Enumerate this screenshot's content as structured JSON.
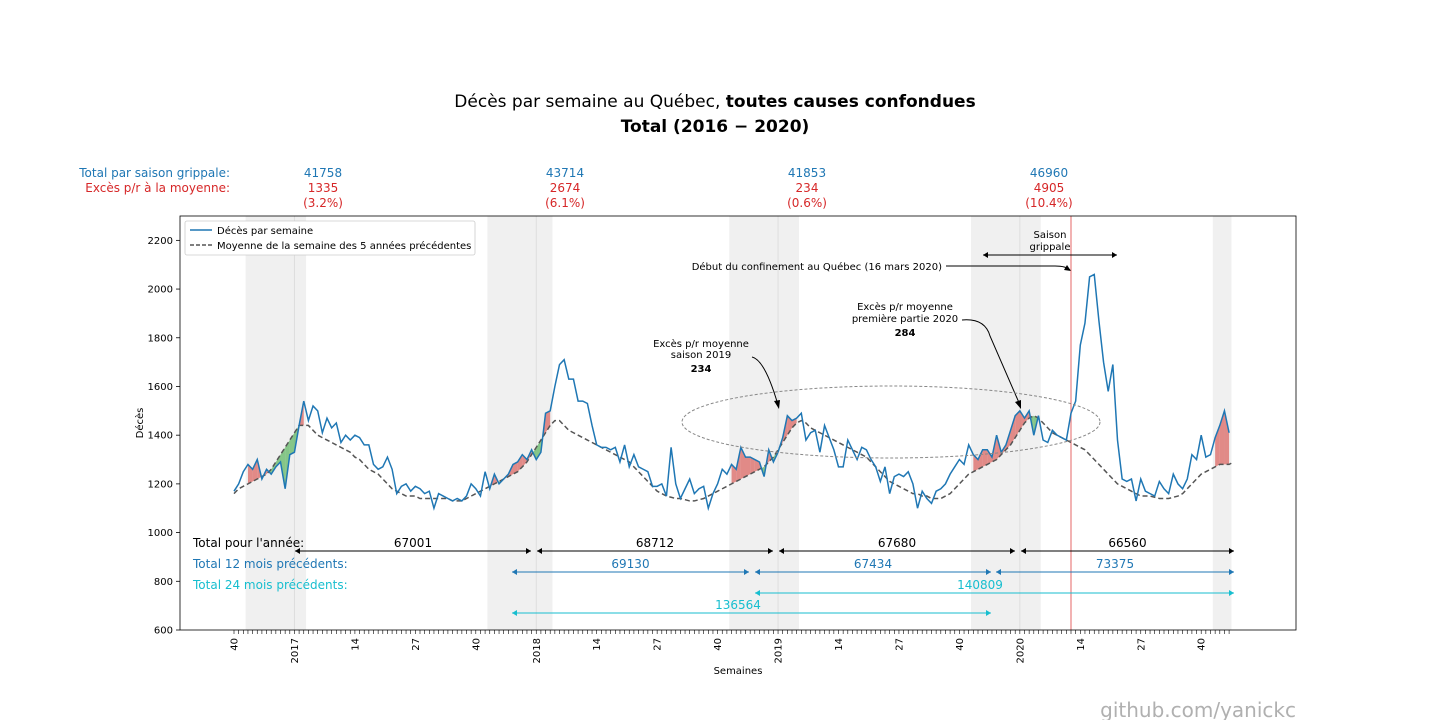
{
  "title": {
    "line1_normal": "Décès par semaine au Québec, ",
    "line1_bold": "toutes causes confondues",
    "line2": "Total (2016 − 2020)"
  },
  "header_labels": {
    "total_saison": "Total par saison grippale:",
    "exces_moyenne": "Excès p/r à la moyenne:"
  },
  "seasons": [
    {
      "total": "41758",
      "excess": "1335",
      "pct": "(3.2%)"
    },
    {
      "total": "43714",
      "excess": "2674",
      "pct": "(6.1%)"
    },
    {
      "total": "41853",
      "excess": "234",
      "pct": "(0.6%)"
    },
    {
      "total": "46960",
      "excess": "4905",
      "pct": "(10.4%)"
    }
  ],
  "annotations": {
    "saison_line1": "Saison",
    "saison_line2": "grippale",
    "confinement": "Début du confinement au Québec (16 mars 2020)",
    "exces2019_line1": "Excès p/r moyenne",
    "exces2019_line2": "saison 2019",
    "exces2019_value": "234",
    "exces2020_line1": "Excès p/r moyenne",
    "exces2020_line2": "première partie 2020",
    "exces2020_value": "284"
  },
  "totals": {
    "annee_label": "Total pour l'année:",
    "annee_values": [
      "67001",
      "68712",
      "67680",
      "66560"
    ],
    "m12_label": "Total 12 mois précédents:",
    "m12_values": [
      "69130",
      "67434",
      "73375"
    ],
    "m24_label": "Total 24 mois précédents:",
    "m24_values": [
      "140809",
      "136564"
    ]
  },
  "watermark": "github.com/yanickc",
  "colors": {
    "deces": "#1f77b4",
    "moyenne": "#555555",
    "excess_pos": "#d9534f",
    "excess_neg": "#4caf50",
    "season_band": "#f0f0f0",
    "confinement_line": "#e88080",
    "teal": "#17becf",
    "red": "#d62728"
  },
  "chart_data": {
    "type": "line",
    "xlabel": "Semaines",
    "ylabel": "Décès",
    "ylim": [
      600,
      2300
    ],
    "yticks": [
      600,
      800,
      1000,
      1200,
      1400,
      1600,
      1800,
      2000,
      2200
    ],
    "x_start_week": "2016 semaine 40",
    "xticks": [
      {
        "index": 0,
        "label": "40"
      },
      {
        "index": 13,
        "label": "2017"
      },
      {
        "index": 26,
        "label": "14"
      },
      {
        "index": 39,
        "label": "27"
      },
      {
        "index": 52,
        "label": "40"
      },
      {
        "index": 65,
        "label": "2018"
      },
      {
        "index": 78,
        "label": "14"
      },
      {
        "index": 91,
        "label": "27"
      },
      {
        "index": 104,
        "label": "40"
      },
      {
        "index": 117,
        "label": "2019"
      },
      {
        "index": 130,
        "label": "14"
      },
      {
        "index": 143,
        "label": "27"
      },
      {
        "index": 156,
        "label": "40"
      },
      {
        "index": 169,
        "label": "2020"
      },
      {
        "index": 182,
        "label": "14"
      },
      {
        "index": 195,
        "label": "27"
      },
      {
        "index": 208,
        "label": "40"
      }
    ],
    "grid": false,
    "legend_position": "top-left",
    "series": [
      {
        "name": "Décès par semaine",
        "values": [
          1170,
          1200,
          1250,
          1280,
          1260,
          1300,
          1220,
          1260,
          1240,
          1270,
          1290,
          1180,
          1320,
          1330,
          1440,
          1540,
          1460,
          1520,
          1500,
          1410,
          1470,
          1430,
          1450,
          1370,
          1400,
          1380,
          1400,
          1390,
          1360,
          1360,
          1280,
          1260,
          1270,
          1310,
          1260,
          1160,
          1190,
          1200,
          1170,
          1190,
          1180,
          1160,
          1170,
          1100,
          1160,
          1150,
          1140,
          1130,
          1140,
          1130,
          1150,
          1200,
          1180,
          1150,
          1250,
          1180,
          1240,
          1200,
          1220,
          1240,
          1280,
          1290,
          1320,
          1300,
          1340,
          1300,
          1330,
          1490,
          1500,
          1600,
          1690,
          1710,
          1630,
          1630,
          1540,
          1540,
          1530,
          1440,
          1360,
          1350,
          1350,
          1340,
          1350,
          1290,
          1360,
          1270,
          1320,
          1270,
          1260,
          1250,
          1190,
          1190,
          1200,
          1150,
          1350,
          1200,
          1140,
          1180,
          1220,
          1160,
          1180,
          1190,
          1100,
          1160,
          1200,
          1260,
          1240,
          1280,
          1260,
          1350,
          1310,
          1310,
          1300,
          1290,
          1230,
          1340,
          1290,
          1330,
          1390,
          1480,
          1460,
          1470,
          1490,
          1380,
          1410,
          1420,
          1330,
          1440,
          1390,
          1340,
          1270,
          1270,
          1380,
          1340,
          1300,
          1350,
          1340,
          1300,
          1270,
          1210,
          1270,
          1160,
          1230,
          1240,
          1230,
          1250,
          1200,
          1100,
          1170,
          1140,
          1120,
          1170,
          1180,
          1200,
          1240,
          1270,
          1300,
          1280,
          1360,
          1320,
          1300,
          1340,
          1340,
          1310,
          1400,
          1330,
          1360,
          1420,
          1480,
          1500,
          1470,
          1500,
          1400,
          1480,
          1380,
          1370,
          1420,
          1400,
          1390,
          1380,
          1490,
          1540,
          1770,
          1860,
          2050,
          2060,
          1870,
          1700,
          1580,
          1690,
          1380,
          1220,
          1210,
          1220,
          1130,
          1220,
          1170,
          1160,
          1150,
          1210,
          1180,
          1160,
          1240,
          1200,
          1180,
          1220,
          1320,
          1300,
          1400,
          1310,
          1320,
          1390,
          1440,
          1500,
          1410
        ]
      },
      {
        "name": "Moyenne de la semaine des 5 années précédentes",
        "values": [
          1160,
          1180,
          1190,
          1200,
          1210,
          1220,
          1230,
          1240,
          1260,
          1290,
          1320,
          1350,
          1380,
          1410,
          1440,
          1440,
          1440,
          1420,
          1400,
          1390,
          1380,
          1370,
          1360,
          1350,
          1340,
          1330,
          1310,
          1300,
          1280,
          1260,
          1250,
          1240,
          1220,
          1200,
          1180,
          1170,
          1160,
          1150,
          1150,
          1150,
          1140,
          1140,
          1140,
          1140,
          1140,
          1140,
          1140,
          1130,
          1130,
          1130,
          1140,
          1150,
          1160,
          1170,
          1180,
          1190,
          1200,
          1210,
          1220,
          1230,
          1240,
          1250,
          1270,
          1290,
          1320,
          1350,
          1380,
          1410,
          1440,
          1460,
          1460,
          1440,
          1420,
          1410,
          1400,
          1390,
          1380,
          1370,
          1360,
          1350,
          1340,
          1330,
          1320,
          1310,
          1300,
          1290,
          1270,
          1250,
          1230,
          1210,
          1190,
          1170,
          1160,
          1150,
          1145,
          1140,
          1140,
          1135,
          1130,
          1130,
          1135,
          1140,
          1150,
          1160,
          1170,
          1180,
          1190,
          1200,
          1210,
          1220,
          1230,
          1240,
          1250,
          1260,
          1270,
          1290,
          1310,
          1340,
          1370,
          1400,
          1430,
          1450,
          1460,
          1450,
          1430,
          1420,
          1410,
          1400,
          1390,
          1380,
          1370,
          1360,
          1350,
          1340,
          1330,
          1320,
          1310,
          1290,
          1270,
          1250,
          1230,
          1210,
          1200,
          1190,
          1180,
          1170,
          1160,
          1160,
          1150,
          1150,
          1140,
          1140,
          1140,
          1150,
          1160,
          1180,
          1200,
          1220,
          1240,
          1250,
          1260,
          1270,
          1280,
          1290,
          1300,
          1320,
          1340,
          1360,
          1390,
          1420,
          1450,
          1470,
          1480,
          1470,
          1450,
          1430,
          1410,
          1400,
          1390,
          1380,
          1370,
          1360,
          1350,
          1340,
          1320,
          1300,
          1280,
          1260,
          1240,
          1220,
          1200,
          1190,
          1180,
          1170,
          1160,
          1150,
          1150,
          1150,
          1145,
          1140,
          1140,
          1140,
          1145,
          1150,
          1160,
          1180,
          1200,
          1220,
          1240,
          1250,
          1260,
          1270,
          1280,
          1280,
          1280,
          1290
        ]
      }
    ],
    "season_bands": [
      [
        3,
        15
      ],
      [
        55,
        68
      ],
      [
        107,
        121
      ],
      [
        159,
        173
      ],
      [
        211,
        214
      ]
    ],
    "confinement_index": 180
  }
}
